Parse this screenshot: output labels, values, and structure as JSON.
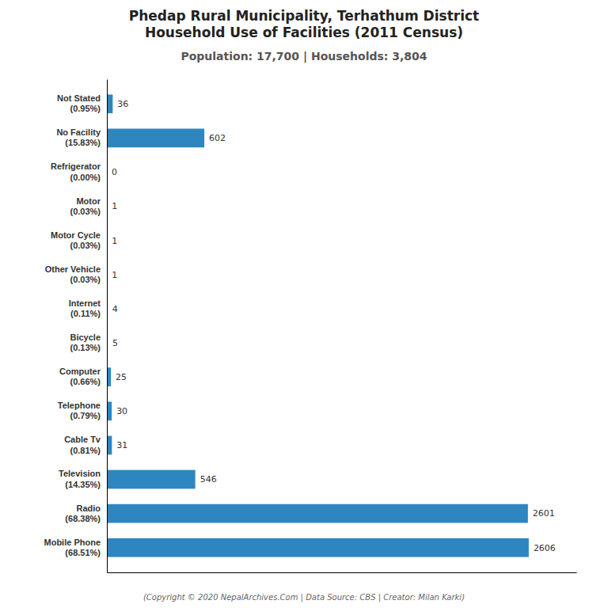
{
  "chart_data": {
    "type": "bar",
    "orientation": "horizontal",
    "title": [
      "Phedap Rural Municipality, Terhathum District",
      "Household Use of Facilities (2011 Census)"
    ],
    "subtitle": "Population: 17,700 | Households: 3,804",
    "annotations": [
      "(Copyright © 2020 NepalArchives.Com | Data Source: CBS | Creator: Milan Karki)"
    ],
    "categories": [
      "Mobile Phone\n(68.51%)",
      "Radio\n(68.38%)",
      "Television\n(14.35%)",
      "Cable Tv\n(0.81%)",
      "Telephone\n(0.79%)",
      "Computer\n(0.66%)",
      "Bicycle\n(0.13%)",
      "Internet\n(0.11%)",
      "Other Vehicle\n(0.03%)",
      "Motor Cycle\n(0.03%)",
      "Motor\n(0.03%)",
      "Refrigerator\n(0.00%)",
      "No Facility\n(15.83%)",
      "Not Stated\n(0.95%)"
    ],
    "values": [
      2606,
      2601,
      546,
      31,
      30,
      25,
      5,
      4,
      1,
      1,
      1,
      0,
      602,
      36
    ],
    "color": "#2e86c1",
    "xlim": [
      0,
      2900
    ],
    "data_labels": true,
    "tick_labels": "y",
    "grid": false
  }
}
